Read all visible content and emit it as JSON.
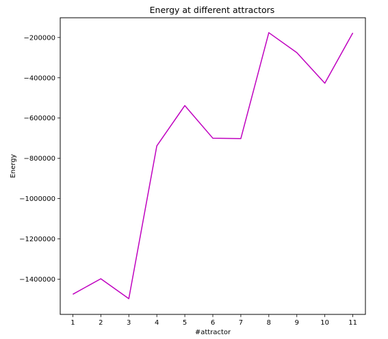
{
  "chart_data": {
    "type": "line",
    "title": "Energy at different attractors",
    "xlabel": "#attractor",
    "ylabel": "Energy",
    "x": [
      1,
      2,
      3,
      4,
      5,
      6,
      7,
      8,
      9,
      10,
      11
    ],
    "series": [
      {
        "values": [
          -1475000,
          -1398000,
          -1497000,
          -738000,
          -538000,
          -700000,
          -702000,
          -176000,
          -275000,
          -427000,
          -177000
        ]
      }
    ],
    "xlim": [
      0.55,
      11.45
    ],
    "ylim": [
      -1575000,
      -102000
    ],
    "xticks": [
      "1",
      "2",
      "3",
      "4",
      "5",
      "6",
      "7",
      "8",
      "9",
      "10",
      "11"
    ],
    "yticks": [
      "−1400000",
      "−1200000",
      "−1000000",
      "−800000",
      "−600000",
      "−400000",
      "−200000"
    ],
    "ytick_values": [
      -1400000,
      -1200000,
      -1000000,
      -800000,
      -600000,
      -400000,
      -200000
    ],
    "line_color": "#bf00bf",
    "grid": false
  }
}
